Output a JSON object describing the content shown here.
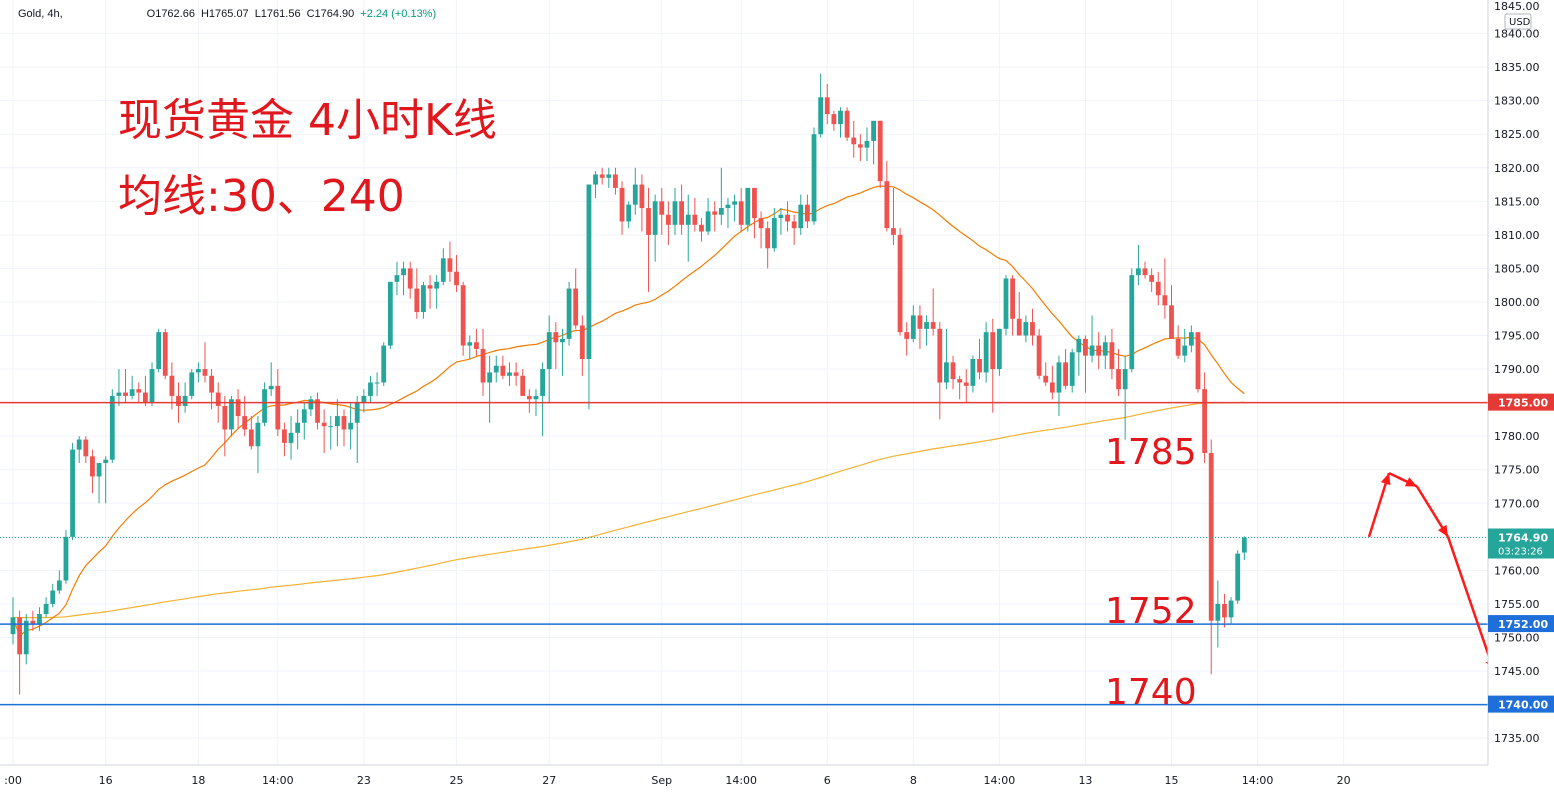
{
  "header": {
    "symbol": "Gold, 4h,",
    "open": "O1762.66",
    "high": "H1765.07",
    "low": "L1761.56",
    "close": "C1764.90",
    "change": "+2.24 (+0.13%)"
  },
  "annotations": {
    "title": "现货黄金 4小时K线",
    "subtitle": "均线:30、240",
    "level_1785": "1785",
    "level_1752": "1752",
    "level_1740": "1740"
  },
  "colors": {
    "up": "#26a69a",
    "down": "#ef5350",
    "ma30": "#f57c00",
    "ma240": "#f2b233",
    "resistance": "#e53935",
    "support": "#1e6fd9",
    "arrow": "#ff1a1a",
    "annotation_text": "#e0171c"
  },
  "chart_data": {
    "type": "candlestick",
    "symbol": "Gold",
    "interval": "4h",
    "currency": "USD",
    "ylim": [
      1731,
      1845
    ],
    "y_ticks": [
      1735,
      1740,
      1745,
      1750,
      1755,
      1760,
      1765,
      1770,
      1775,
      1780,
      1785,
      1790,
      1795,
      1800,
      1805,
      1810,
      1815,
      1820,
      1825,
      1830,
      1835,
      1840
    ],
    "y_tick_labels": [
      "1735.00",
      "1740.00",
      "1745.00",
      "1750.00",
      "1755.00",
      "1760.00",
      "1765.00",
      "1770.00",
      "1775.00",
      "1780.00",
      "1785.00",
      "1790.00",
      "1795.00",
      "1800.00",
      "1805.00",
      "1810.00",
      "1815.00",
      "1820.00",
      "1825.00",
      "1830.00",
      "1835.00",
      "1840.00"
    ],
    "y_top_partial_label": "1845.00",
    "x_labels": [
      {
        "i": 0,
        "label": ":00"
      },
      {
        "i": 14,
        "label": "16"
      },
      {
        "i": 28,
        "label": "18"
      },
      {
        "i": 40,
        "label": "14:00"
      },
      {
        "i": 53,
        "label": "23"
      },
      {
        "i": 67,
        "label": "25"
      },
      {
        "i": 81,
        "label": "27"
      },
      {
        "i": 98,
        "label": "Sep"
      },
      {
        "i": 110,
        "label": "14:00"
      },
      {
        "i": 123,
        "label": "6"
      },
      {
        "i": 136,
        "label": "8"
      },
      {
        "i": 149,
        "label": "14:00"
      },
      {
        "i": 162,
        "label": "13"
      },
      {
        "i": 175,
        "label": "15"
      },
      {
        "i": 188,
        "label": "14:00"
      },
      {
        "i": 201,
        "label": "20"
      }
    ],
    "candles_ohlc": [
      [
        1750.5,
        1756.0,
        1749.0,
        1753.0
      ],
      [
        1753.0,
        1754.0,
        1741.5,
        1747.5
      ],
      [
        1747.5,
        1753.5,
        1746.0,
        1752.5
      ],
      [
        1752.5,
        1754.0,
        1751.0,
        1752.0
      ],
      [
        1752.0,
        1754.5,
        1751.0,
        1753.5
      ],
      [
        1753.5,
        1756.0,
        1753.0,
        1755.0
      ],
      [
        1755.0,
        1758.0,
        1754.5,
        1757.0
      ],
      [
        1757.0,
        1760.0,
        1756.5,
        1758.5
      ],
      [
        1758.5,
        1766.0,
        1758.0,
        1765.0
      ],
      [
        1765.0,
        1779.0,
        1764.5,
        1778.0
      ],
      [
        1778.0,
        1780.0,
        1776.0,
        1779.5
      ],
      [
        1779.5,
        1780.0,
        1776.0,
        1777.0
      ],
      [
        1777.0,
        1778.0,
        1771.5,
        1774.0
      ],
      [
        1774.0,
        1776.0,
        1770.0,
        1776.0
      ],
      [
        1776.0,
        1777.0,
        1770.0,
        1776.5
      ],
      [
        1776.5,
        1787.0,
        1776.0,
        1786.0
      ],
      [
        1786.0,
        1790.0,
        1784.5,
        1786.5
      ],
      [
        1786.5,
        1790.0,
        1785.0,
        1786.0
      ],
      [
        1786.0,
        1789.0,
        1785.5,
        1787.0
      ],
      [
        1787.0,
        1788.0,
        1785.0,
        1786.5
      ],
      [
        1786.5,
        1789.0,
        1784.5,
        1785.0
      ],
      [
        1785.0,
        1791.0,
        1784.5,
        1790.0
      ],
      [
        1790.0,
        1796.0,
        1789.5,
        1795.5
      ],
      [
        1795.5,
        1796.0,
        1788.5,
        1789.0
      ],
      [
        1789.0,
        1791.0,
        1784.0,
        1786.0
      ],
      [
        1786.0,
        1788.0,
        1782.0,
        1784.5
      ],
      [
        1784.5,
        1788.0,
        1783.5,
        1786.0
      ],
      [
        1786.0,
        1790.0,
        1785.5,
        1789.5
      ],
      [
        1789.5,
        1791.0,
        1788.0,
        1790.0
      ],
      [
        1790.0,
        1794.0,
        1788.0,
        1789.0
      ],
      [
        1789.0,
        1790.0,
        1784.0,
        1786.5
      ],
      [
        1786.5,
        1788.0,
        1782.0,
        1784.5
      ],
      [
        1784.5,
        1786.0,
        1777.0,
        1781.0
      ],
      [
        1781.0,
        1786.0,
        1780.0,
        1785.5
      ],
      [
        1785.5,
        1787.0,
        1781.0,
        1783.0
      ],
      [
        1783.0,
        1786.0,
        1780.0,
        1781.0
      ],
      [
        1781.0,
        1783.0,
        1778.0,
        1778.5
      ],
      [
        1778.5,
        1783.0,
        1774.5,
        1782.0
      ],
      [
        1782.0,
        1788.0,
        1781.5,
        1787.0
      ],
      [
        1787.0,
        1791.0,
        1786.0,
        1787.5
      ],
      [
        1787.5,
        1790.0,
        1780.0,
        1781.0
      ],
      [
        1781.0,
        1782.0,
        1777.0,
        1779.0
      ],
      [
        1779.0,
        1783.0,
        1776.5,
        1780.5
      ],
      [
        1780.5,
        1784.0,
        1778.0,
        1782.0
      ],
      [
        1782.0,
        1785.0,
        1779.5,
        1784.0
      ],
      [
        1784.0,
        1786.0,
        1783.0,
        1785.5
      ],
      [
        1785.5,
        1786.5,
        1781.0,
        1782.0
      ],
      [
        1782.0,
        1784.0,
        1777.5,
        1781.5
      ],
      [
        1781.5,
        1783.0,
        1778.0,
        1781.5
      ],
      [
        1781.5,
        1785.5,
        1778.5,
        1783.0
      ],
      [
        1783.0,
        1784.0,
        1778.5,
        1781.0
      ],
      [
        1781.0,
        1785.0,
        1778.0,
        1782.0
      ],
      [
        1782.0,
        1786.0,
        1776.0,
        1785.0
      ],
      [
        1785.0,
        1787.0,
        1783.5,
        1786.0
      ],
      [
        1786.0,
        1789.0,
        1785.0,
        1788.0
      ],
      [
        1788.0,
        1789.5,
        1786.0,
        1788.0
      ],
      [
        1788.0,
        1794.0,
        1787.5,
        1793.5
      ],
      [
        1793.5,
        1803.0,
        1793.0,
        1803.0
      ],
      [
        1803.0,
        1806.0,
        1801.0,
        1804.0
      ],
      [
        1804.0,
        1806.0,
        1801.0,
        1805.0
      ],
      [
        1805.0,
        1806.0,
        1800.5,
        1802.0
      ],
      [
        1802.0,
        1805.0,
        1797.5,
        1798.5
      ],
      [
        1798.5,
        1803.0,
        1797.5,
        1802.5
      ],
      [
        1802.5,
        1804.0,
        1799.0,
        1802.0
      ],
      [
        1802.0,
        1804.0,
        1799.0,
        1803.0
      ],
      [
        1803.0,
        1808.0,
        1802.5,
        1806.5
      ],
      [
        1806.5,
        1809.0,
        1803.0,
        1804.5
      ],
      [
        1804.5,
        1807.0,
        1801.5,
        1802.5
      ],
      [
        1802.5,
        1803.0,
        1792.0,
        1793.5
      ],
      [
        1793.5,
        1795.0,
        1791.5,
        1794.0
      ],
      [
        1794.0,
        1796.0,
        1792.0,
        1793.0
      ],
      [
        1793.0,
        1796.0,
        1786.0,
        1788.0
      ],
      [
        1788.0,
        1792.0,
        1782.0,
        1789.5
      ],
      [
        1789.5,
        1792.0,
        1788.0,
        1790.5
      ],
      [
        1790.5,
        1792.0,
        1788.5,
        1789.0
      ],
      [
        1789.0,
        1791.0,
        1787.5,
        1789.5
      ],
      [
        1789.5,
        1791.0,
        1787.5,
        1789.0
      ],
      [
        1789.0,
        1790.0,
        1786.0,
        1786.0
      ],
      [
        1786.0,
        1787.0,
        1783.5,
        1785.5
      ],
      [
        1785.5,
        1787.0,
        1783.0,
        1786.0
      ],
      [
        1786.0,
        1791.0,
        1780.0,
        1790.0
      ],
      [
        1790.0,
        1798.0,
        1785.0,
        1795.5
      ],
      [
        1795.5,
        1797.0,
        1790.0,
        1794.0
      ],
      [
        1794.0,
        1796.0,
        1789.0,
        1794.5
      ],
      [
        1794.5,
        1803.0,
        1793.5,
        1802.0
      ],
      [
        1802.0,
        1805.0,
        1796.0,
        1796.5
      ],
      [
        1796.5,
        1798.0,
        1789.0,
        1791.5
      ],
      [
        1791.5,
        1794.0,
        1784.0,
        1817.5
      ],
      [
        1817.5,
        1819.5,
        1815.5,
        1819.0
      ],
      [
        1819.0,
        1820.0,
        1817.5,
        1818.5
      ],
      [
        1818.5,
        1820.0,
        1817.0,
        1819.0
      ],
      [
        1819.0,
        1820.0,
        1816.0,
        1817.0
      ],
      [
        1817.0,
        1818.0,
        1810.0,
        1812.0
      ],
      [
        1812.0,
        1815.0,
        1811.0,
        1814.5
      ],
      [
        1814.5,
        1820.0,
        1813.0,
        1817.5
      ],
      [
        1817.5,
        1819.0,
        1810.5,
        1814.0
      ],
      [
        1814.0,
        1817.0,
        1801.5,
        1810.0
      ],
      [
        1810.0,
        1816.0,
        1806.0,
        1815.0
      ],
      [
        1815.0,
        1817.0,
        1810.0,
        1813.0
      ],
      [
        1813.0,
        1815.0,
        1808.5,
        1811.5
      ],
      [
        1811.5,
        1817.0,
        1810.0,
        1815.0
      ],
      [
        1815.0,
        1817.5,
        1810.0,
        1811.5
      ],
      [
        1811.5,
        1816.0,
        1806.0,
        1813.0
      ],
      [
        1813.0,
        1815.5,
        1810.5,
        1811.5
      ],
      [
        1811.5,
        1812.5,
        1809.0,
        1810.5
      ],
      [
        1810.5,
        1815.5,
        1810.0,
        1813.5
      ],
      [
        1813.5,
        1815.0,
        1810.5,
        1813.0
      ],
      [
        1813.0,
        1820.0,
        1811.5,
        1814.0
      ],
      [
        1814.0,
        1815.5,
        1811.0,
        1814.5
      ],
      [
        1814.5,
        1816.0,
        1812.0,
        1815.0
      ],
      [
        1815.0,
        1817.0,
        1810.5,
        1811.5
      ],
      [
        1811.5,
        1817.0,
        1810.5,
        1817.0
      ],
      [
        1817.0,
        1817.0,
        1809.5,
        1812.5
      ],
      [
        1812.5,
        1813.5,
        1808.0,
        1811.0
      ],
      [
        1811.0,
        1812.0,
        1805.0,
        1808.0
      ],
      [
        1808.0,
        1814.0,
        1807.5,
        1812.5
      ],
      [
        1812.5,
        1814.0,
        1810.0,
        1813.0
      ],
      [
        1813.0,
        1815.0,
        1810.5,
        1812.0
      ],
      [
        1812.0,
        1813.0,
        1808.5,
        1811.0
      ],
      [
        1811.0,
        1816.0,
        1810.0,
        1814.5
      ],
      [
        1814.5,
        1816.0,
        1811.0,
        1812.0
      ],
      [
        1812.0,
        1826.0,
        1811.5,
        1825.0
      ],
      [
        1825.0,
        1834.0,
        1824.5,
        1830.5
      ],
      [
        1830.5,
        1832.5,
        1826.5,
        1828.0
      ],
      [
        1828.0,
        1828.5,
        1825.5,
        1826.5
      ],
      [
        1826.5,
        1829.0,
        1824.5,
        1828.5
      ],
      [
        1828.5,
        1829.0,
        1824.0,
        1824.5
      ],
      [
        1824.5,
        1827.0,
        1821.5,
        1823.5
      ],
      [
        1823.5,
        1825.0,
        1821.0,
        1823.0
      ],
      [
        1823.0,
        1826.0,
        1821.0,
        1824.0
      ],
      [
        1824.0,
        1826.0,
        1820.5,
        1827.0
      ],
      [
        1827.0,
        1827.0,
        1817.0,
        1818.0
      ],
      [
        1818.0,
        1821.0,
        1810.5,
        1811.0
      ],
      [
        1811.0,
        1817.0,
        1808.5,
        1810.0
      ],
      [
        1810.0,
        1811.0,
        1795.0,
        1795.5
      ],
      [
        1795.5,
        1797.0,
        1792.0,
        1794.5
      ],
      [
        1794.5,
        1799.5,
        1794.0,
        1798.0
      ],
      [
        1798.0,
        1799.5,
        1793.0,
        1796.0
      ],
      [
        1796.0,
        1798.0,
        1793.5,
        1797.0
      ],
      [
        1797.0,
        1802.0,
        1795.0,
        1796.0
      ],
      [
        1796.0,
        1797.0,
        1782.5,
        1788.0
      ],
      [
        1788.0,
        1796.0,
        1787.0,
        1791.0
      ],
      [
        1791.0,
        1792.0,
        1787.0,
        1788.5
      ],
      [
        1788.5,
        1789.0,
        1785.5,
        1788.0
      ],
      [
        1788.0,
        1790.0,
        1785.0,
        1787.5
      ],
      [
        1787.5,
        1792.0,
        1786.5,
        1791.5
      ],
      [
        1791.5,
        1794.5,
        1788.5,
        1789.5
      ],
      [
        1789.5,
        1797.0,
        1788.0,
        1795.5
      ],
      [
        1795.5,
        1797.5,
        1783.5,
        1790.0
      ],
      [
        1790.0,
        1796.0,
        1789.0,
        1796.0
      ],
      [
        1796.0,
        1804.0,
        1795.0,
        1803.5
      ],
      [
        1803.5,
        1804.0,
        1795.0,
        1797.5
      ],
      [
        1797.5,
        1801.5,
        1796.5,
        1795.0
      ],
      [
        1795.0,
        1798.0,
        1794.0,
        1797.0
      ],
      [
        1797.0,
        1799.0,
        1793.5,
        1795.0
      ],
      [
        1795.0,
        1796.0,
        1788.5,
        1789.0
      ],
      [
        1789.0,
        1791.0,
        1787.5,
        1788.0
      ],
      [
        1788.0,
        1790.5,
        1785.5,
        1786.5
      ],
      [
        1786.5,
        1792.0,
        1783.0,
        1791.0
      ],
      [
        1791.0,
        1793.0,
        1787.0,
        1787.5
      ],
      [
        1787.5,
        1793.0,
        1786.5,
        1792.5
      ],
      [
        1792.5,
        1795.0,
        1789.0,
        1794.5
      ],
      [
        1794.5,
        1795.0,
        1786.5,
        1792.0
      ],
      [
        1792.0,
        1798.0,
        1791.0,
        1793.5
      ],
      [
        1793.5,
        1795.5,
        1790.0,
        1792.0
      ],
      [
        1792.0,
        1795.0,
        1790.0,
        1794.0
      ],
      [
        1794.0,
        1796.0,
        1788.5,
        1790.0
      ],
      [
        1790.0,
        1793.0,
        1786.0,
        1787.0
      ],
      [
        1787.0,
        1792.0,
        1779.5,
        1790.0
      ],
      [
        1790.0,
        1805.0,
        1789.5,
        1804.0
      ],
      [
        1804.0,
        1808.5,
        1802.5,
        1805.0
      ],
      [
        1805.0,
        1806.0,
        1803.5,
        1804.0
      ],
      [
        1804.0,
        1805.0,
        1801.5,
        1803.0
      ],
      [
        1803.0,
        1804.5,
        1799.5,
        1801.0
      ],
      [
        1801.0,
        1806.5,
        1797.5,
        1799.5
      ],
      [
        1799.5,
        1802.5,
        1797.5,
        1794.5
      ],
      [
        1794.5,
        1796.5,
        1791.5,
        1792.0
      ],
      [
        1792.0,
        1796.0,
        1791.0,
        1793.5
      ],
      [
        1793.5,
        1796.5,
        1792.5,
        1795.5
      ],
      [
        1795.5,
        1795.5,
        1786.5,
        1787.0
      ],
      [
        1787.0,
        1789.5,
        1776.0,
        1777.5
      ],
      [
        1777.5,
        1779.5,
        1744.5,
        1752.5
      ],
      [
        1752.5,
        1758.5,
        1748.5,
        1755.0
      ],
      [
        1755.0,
        1756.5,
        1751.5,
        1753.0
      ],
      [
        1753.0,
        1756.0,
        1752.0,
        1755.5
      ],
      [
        1755.5,
        1763.0,
        1755.0,
        1762.5
      ],
      [
        1762.66,
        1765.07,
        1761.56,
        1764.9
      ]
    ],
    "ma_series": [
      {
        "name": "30",
        "period": 30
      },
      {
        "name": "240",
        "period": 240
      }
    ],
    "horizontal_lines": [
      {
        "value": 1785.0,
        "label": "1785.00",
        "color": "#e53935"
      },
      {
        "value": 1752.0,
        "label": "1752.00",
        "color": "#1e6fd9"
      },
      {
        "value": 1740.0,
        "label": "1740.00",
        "color": "#1e6fd9"
      }
    ],
    "last_price": {
      "value": 1764.9,
      "label": "1764.90",
      "countdown": "03:23:26"
    },
    "currency_label": "USD",
    "forecast_path": [
      1765.0,
      1774.5,
      1772.5,
      1765.0,
      1745.0
    ]
  }
}
